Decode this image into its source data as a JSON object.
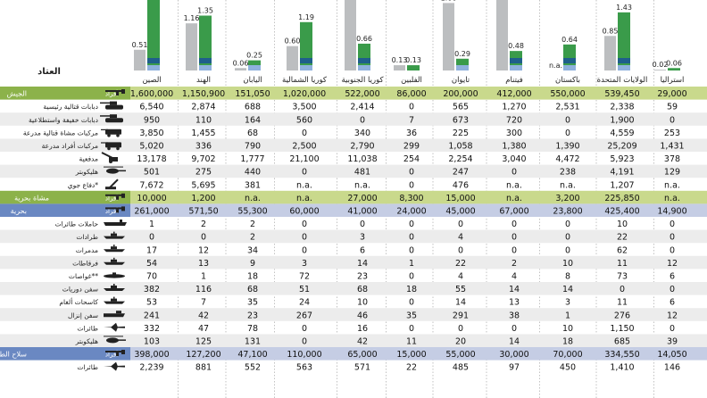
{
  "header": {
    "equipment_label": "العتاد"
  },
  "countries": [
    "الصين",
    "الهند",
    "اليابان",
    "كوريا الشمالية",
    "كوريا الجنوبية",
    "الفلبين",
    "تايوان",
    "فيتنام",
    "باكستان",
    "الولايات المتحدة",
    "استراليا"
  ],
  "colors": {
    "gray_bar": "#bcbec0",
    "green_bar": "#3a9b4a",
    "light_green_bar": "#8cc152",
    "blue_bar": "#8fb1dd",
    "navy_bar": "#1f5f8b",
    "army_band": "#c9d98c",
    "army_header": "#8cb24a",
    "navy_band": "#c5cde4",
    "navy_header": "#6a88c2",
    "air_band": "#c5cde4",
    "air_header": "#6a88c2",
    "stripe": "#ececec"
  },
  "chart_data": {
    "type": "bar",
    "categories": [
      "الصين",
      "الهند",
      "اليابان",
      "كوريا الشمالية",
      "كوريا الجنوبية",
      "الفلبين",
      "تايوان",
      "فيتنام",
      "باكستان",
      "الولايات المتحدة",
      "استراليا"
    ],
    "series": [
      {
        "values": [
          0.51,
          1.16,
          0.06,
          0.6,
          1.8,
          0.13,
          1.66,
          1.8,
          0,
          0.85,
          0.02
        ],
        "labels": [
          "0.51",
          "1.16",
          "0.06",
          "0.60",
          "",
          "0.13",
          "1.66",
          "",
          "n.a.",
          "0.85",
          "0.02"
        ]
      },
      {
        "values": [
          1.8,
          1.35,
          0.25,
          1.19,
          0.66,
          0.13,
          0.29,
          0.48,
          0.64,
          1.43,
          0.06
        ],
        "labels": [
          "",
          "1.35",
          "0.25",
          "1.19",
          "0.66",
          "0.13",
          "0.29",
          "0.48",
          "0.64",
          "1.43",
          "0.06"
        ]
      }
    ],
    "ylim": [
      0,
      1.8
    ]
  },
  "sections": [
    {
      "id": "army",
      "name": "الجيش",
      "people_label": "أفراد",
      "people": [
        "1,600,000",
        "1,150,900",
        "151,050",
        "1,020,000",
        "522,000",
        "86,000",
        "200,000",
        "412,000",
        "550,000",
        "539,450",
        "29,000"
      ],
      "rows": [
        {
          "icon": "tank",
          "label": "دبابات قتالية رئيسية",
          "values": [
            "6,540",
            "2,874",
            "688",
            "3,500",
            "2,414",
            "0",
            "565",
            "1,270",
            "2,531",
            "2,338",
            "59"
          ]
        },
        {
          "icon": "light-tank",
          "label": "دبابات خفيفة واستطلاعية",
          "values": [
            "950",
            "110",
            "164",
            "560",
            "0",
            "7",
            "673",
            "720",
            "0",
            "1,900",
            "0"
          ]
        },
        {
          "icon": "ifv",
          "label": "مركبات مشاة قتالية مدرعة",
          "values": [
            "3,850",
            "1,455",
            "68",
            "0",
            "340",
            "36",
            "225",
            "300",
            "0",
            "4,559",
            "253"
          ]
        },
        {
          "icon": "apc",
          "label": "مركبات أفراد مدرعة",
          "values": [
            "5,020",
            "336",
            "790",
            "2,500",
            "2,790",
            "299",
            "1,058",
            "1,380",
            "1,390",
            "25,209",
            "1,431"
          ]
        },
        {
          "icon": "artillery",
          "label": "مدفعية",
          "values": [
            "13,178",
            "9,702",
            "1,777",
            "21,100",
            "11,038",
            "254",
            "2,254",
            "3,040",
            "4,472",
            "5,923",
            "378"
          ]
        },
        {
          "icon": "helicopter",
          "label": "هليكوبتر",
          "values": [
            "501",
            "275",
            "440",
            "0",
            "481",
            "0",
            "247",
            "0",
            "238",
            "4,191",
            "129"
          ]
        },
        {
          "icon": "air-defense",
          "label": "دفاع جوي*",
          "values": [
            "7,672",
            "5,695",
            "381",
            "n.a.",
            "n.a.",
            "0",
            "476",
            "n.a.",
            "n.a.",
            "1,207",
            "n.a."
          ]
        }
      ],
      "footer_label": "مشاة بحرية",
      "footer_people_label": "أفراد",
      "footer_values": [
        "10,000",
        "1,200",
        "n.a.",
        "n.a.",
        "27,000",
        "8,300",
        "15,000",
        "n.a.",
        "3,200",
        "225,850",
        "n.a."
      ]
    },
    {
      "id": "navy",
      "name": "بحرية",
      "people_label": "أفراد",
      "people": [
        "261,000",
        "571,50",
        "55,300",
        "60,000",
        "41,000",
        "24,000",
        "45,000",
        "67,000",
        "23,800",
        "425,400",
        "14,900"
      ],
      "rows": [
        {
          "icon": "carrier",
          "label": "حاملات طائرات",
          "values": [
            "1",
            "2",
            "2",
            "0",
            "0",
            "0",
            "0",
            "0",
            "0",
            "10",
            "0"
          ]
        },
        {
          "icon": "destroyer",
          "label": "طرادات",
          "values": [
            "0",
            "0",
            "2",
            "0",
            "3",
            "0",
            "4",
            "0",
            "0",
            "22",
            "0"
          ]
        },
        {
          "icon": "destroyer",
          "label": "مدمرات",
          "values": [
            "17",
            "12",
            "34",
            "0",
            "6",
            "0",
            "0",
            "0",
            "0",
            "62",
            "0"
          ]
        },
        {
          "icon": "frigate",
          "label": "فرقاطات",
          "values": [
            "54",
            "13",
            "9",
            "3",
            "14",
            "1",
            "22",
            "2",
            "10",
            "11",
            "12"
          ]
        },
        {
          "icon": "submarine",
          "label": "غواصات**",
          "values": [
            "70",
            "1",
            "18",
            "72",
            "23",
            "0",
            "4",
            "4",
            "8",
            "73",
            "6"
          ]
        },
        {
          "icon": "patrol",
          "label": "سفن دوريات",
          "values": [
            "382",
            "116",
            "68",
            "51",
            "68",
            "18",
            "55",
            "14",
            "14",
            "0",
            "0"
          ],
          "fix": true
        },
        {
          "icon": "minesweeper",
          "label": "كاسحات ألغام",
          "values": [
            "53",
            "7",
            "35",
            "24",
            "10",
            "0",
            "14",
            "13",
            "3",
            "11",
            "6"
          ]
        },
        {
          "icon": "landing",
          "label": "سفن إنزال",
          "values": [
            "241",
            "42",
            "23",
            "267",
            "46",
            "35",
            "291",
            "38",
            "1",
            "276",
            "12"
          ]
        },
        {
          "icon": "plane",
          "label": "طائرات",
          "values": [
            "332",
            "47",
            "78",
            "0",
            "16",
            "0",
            "0",
            "0",
            "10",
            "1,150",
            "0"
          ]
        },
        {
          "icon": "helicopter",
          "label": "هليكوبتر",
          "values": [
            "103",
            "125",
            "131",
            "0",
            "42",
            "11",
            "20",
            "14",
            "18",
            "685",
            "39"
          ]
        }
      ]
    },
    {
      "id": "air",
      "name": "سلاح الطيران",
      "people_label": "أفراد",
      "people": [
        "398,000",
        "127,200",
        "47,100",
        "110,000",
        "65,000",
        "15,000",
        "55,000",
        "30,000",
        "70,000",
        "334,550",
        "14,050"
      ],
      "rows": [
        {
          "icon": "plane",
          "label": "طائرات",
          "values": [
            "2,239",
            "881",
            "552",
            "563",
            "571",
            "22",
            "485",
            "97",
            "450",
            "1,410",
            "146"
          ]
        }
      ]
    }
  ]
}
